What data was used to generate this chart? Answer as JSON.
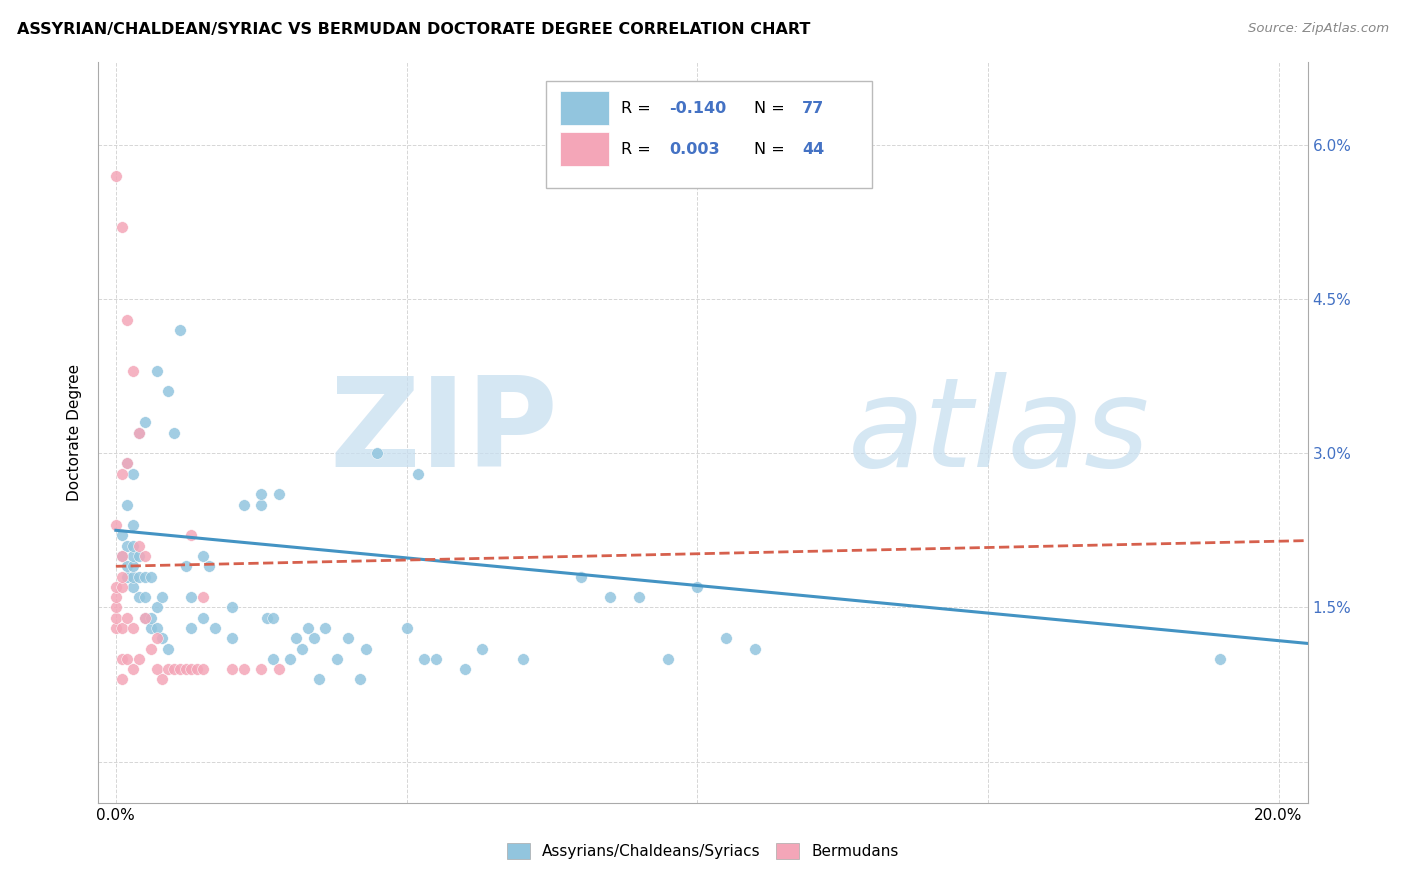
{
  "title": "ASSYRIAN/CHALDEAN/SYRIAC VS BERMUDAN DOCTORATE DEGREE CORRELATION CHART",
  "source": "Source: ZipAtlas.com",
  "ylabel": "Doctorate Degree",
  "yticks": [
    0.0,
    0.015,
    0.03,
    0.045,
    0.06
  ],
  "ytick_labels": [
    "",
    "1.5%",
    "3.0%",
    "4.5%",
    "6.0%"
  ],
  "xticks": [
    0.0,
    0.05,
    0.1,
    0.15,
    0.2
  ],
  "xtick_labels": [
    "0.0%",
    "",
    "",
    "",
    "20.0%"
  ],
  "xlim": [
    -0.003,
    0.205
  ],
  "ylim": [
    -0.004,
    0.068
  ],
  "watermark_zip": "ZIP",
  "watermark_atlas": "atlas",
  "legend_r1_label": "R = ",
  "legend_r1_val": "-0.140",
  "legend_n1_label": "N = ",
  "legend_n1_val": "77",
  "legend_r2_label": "R = ",
  "legend_r2_val": "0.003",
  "legend_n2_label": "N = ",
  "legend_n2_val": "44",
  "blue_color": "#92c5de",
  "pink_color": "#f4a6b8",
  "blue_line_color": "#4393c3",
  "pink_line_color": "#d6604d",
  "text_blue": "#4472c4",
  "blue_scatter_x": [
    0.001,
    0.001,
    0.002,
    0.002,
    0.002,
    0.002,
    0.002,
    0.003,
    0.003,
    0.003,
    0.003,
    0.003,
    0.003,
    0.003,
    0.004,
    0.004,
    0.004,
    0.004,
    0.005,
    0.005,
    0.005,
    0.005,
    0.006,
    0.006,
    0.006,
    0.007,
    0.007,
    0.007,
    0.008,
    0.008,
    0.009,
    0.009,
    0.01,
    0.011,
    0.012,
    0.013,
    0.013,
    0.015,
    0.015,
    0.016,
    0.017,
    0.02,
    0.02,
    0.022,
    0.025,
    0.025,
    0.026,
    0.027,
    0.027,
    0.028,
    0.03,
    0.031,
    0.032,
    0.033,
    0.034,
    0.035,
    0.036,
    0.038,
    0.04,
    0.042,
    0.043,
    0.045,
    0.05,
    0.052,
    0.053,
    0.055,
    0.06,
    0.063,
    0.07,
    0.08,
    0.085,
    0.09,
    0.095,
    0.1,
    0.105,
    0.11,
    0.19
  ],
  "blue_scatter_y": [
    0.02,
    0.022,
    0.018,
    0.019,
    0.021,
    0.025,
    0.029,
    0.017,
    0.018,
    0.019,
    0.02,
    0.021,
    0.023,
    0.028,
    0.016,
    0.018,
    0.02,
    0.032,
    0.014,
    0.016,
    0.018,
    0.033,
    0.013,
    0.014,
    0.018,
    0.013,
    0.015,
    0.038,
    0.012,
    0.016,
    0.011,
    0.036,
    0.032,
    0.042,
    0.019,
    0.013,
    0.016,
    0.014,
    0.02,
    0.019,
    0.013,
    0.012,
    0.015,
    0.025,
    0.025,
    0.026,
    0.014,
    0.01,
    0.014,
    0.026,
    0.01,
    0.012,
    0.011,
    0.013,
    0.012,
    0.008,
    0.013,
    0.01,
    0.012,
    0.008,
    0.011,
    0.03,
    0.013,
    0.028,
    0.01,
    0.01,
    0.009,
    0.011,
    0.01,
    0.018,
    0.016,
    0.016,
    0.01,
    0.017,
    0.012,
    0.011,
    0.01
  ],
  "pink_scatter_x": [
    0.0,
    0.0,
    0.0,
    0.0,
    0.0,
    0.0,
    0.0,
    0.001,
    0.001,
    0.001,
    0.001,
    0.001,
    0.001,
    0.001,
    0.001,
    0.002,
    0.002,
    0.002,
    0.002,
    0.003,
    0.003,
    0.003,
    0.004,
    0.004,
    0.004,
    0.005,
    0.005,
    0.006,
    0.007,
    0.007,
    0.008,
    0.009,
    0.01,
    0.011,
    0.012,
    0.013,
    0.013,
    0.014,
    0.015,
    0.015,
    0.02,
    0.022,
    0.025,
    0.028
  ],
  "pink_scatter_y": [
    0.013,
    0.014,
    0.015,
    0.016,
    0.017,
    0.023,
    0.057,
    0.008,
    0.01,
    0.013,
    0.017,
    0.018,
    0.02,
    0.028,
    0.052,
    0.01,
    0.014,
    0.029,
    0.043,
    0.009,
    0.013,
    0.038,
    0.01,
    0.021,
    0.032,
    0.014,
    0.02,
    0.011,
    0.009,
    0.012,
    0.008,
    0.009,
    0.009,
    0.009,
    0.009,
    0.009,
    0.022,
    0.009,
    0.009,
    0.016,
    0.009,
    0.009,
    0.009,
    0.009
  ],
  "blue_trend_x": [
    0.0,
    0.205
  ],
  "blue_trend_y": [
    0.0225,
    0.0115
  ],
  "pink_trend_x": [
    0.0,
    0.205
  ],
  "pink_trend_y": [
    0.019,
    0.0215
  ]
}
